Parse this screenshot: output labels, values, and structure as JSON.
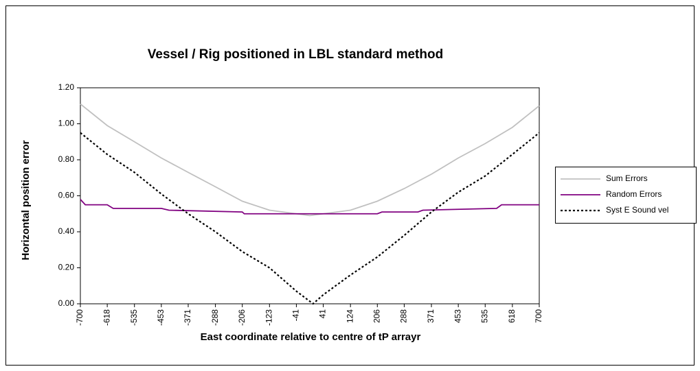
{
  "chart_data": {
    "type": "line",
    "title": "Vessel / Rig positioned in LBL standard method",
    "xlabel": "East coordinate relative to centre of tP arrayr",
    "ylabel": "Horizontal position error",
    "xlim": [
      -700,
      700
    ],
    "xticks": [
      -700,
      -618,
      -535,
      -453,
      -371,
      -288,
      -206,
      -123,
      -41,
      41,
      124,
      206,
      288,
      371,
      453,
      535,
      618,
      700
    ],
    "ylim": [
      0,
      1.2
    ],
    "yticks": [
      {
        "value": 0,
        "label": "0.00"
      },
      {
        "value": 0.2,
        "label": "0.20"
      },
      {
        "value": 0.4,
        "label": "0.40"
      },
      {
        "value": 0.6,
        "label": "0.60"
      },
      {
        "value": 0.8,
        "label": "0.80"
      },
      {
        "value": 1,
        "label": "1.00"
      },
      {
        "value": 1.2,
        "label": "1.20"
      }
    ],
    "grid": false,
    "legend": "right",
    "series": [
      {
        "name": "Sum Errors",
        "color": "#c0c0c0",
        "dash": "solid",
        "x": [
          -700,
          -618,
          -535,
          -453,
          -371,
          -288,
          -206,
          -123,
          -41,
          0,
          41,
          124,
          206,
          288,
          371,
          453,
          535,
          618,
          700
        ],
        "values": [
          1.11,
          0.99,
          0.9,
          0.81,
          0.73,
          0.65,
          0.57,
          0.52,
          0.5,
          0.49,
          0.5,
          0.52,
          0.57,
          0.64,
          0.72,
          0.81,
          0.89,
          0.98,
          1.1
        ]
      },
      {
        "name": "Random Errors",
        "color": "#800080",
        "dash": "solid",
        "x": [
          -700,
          -685,
          -618,
          -600,
          -453,
          -430,
          -206,
          -200,
          206,
          220,
          330,
          345,
          570,
          585,
          700
        ],
        "values": [
          0.58,
          0.55,
          0.55,
          0.53,
          0.53,
          0.52,
          0.51,
          0.5,
          0.5,
          0.51,
          0.51,
          0.52,
          0.53,
          0.55,
          0.55
        ]
      },
      {
        "name": "Syst E Sound vel",
        "color": "#000000",
        "dash": "dotted",
        "x": [
          -700,
          -618,
          -535,
          -453,
          -371,
          -288,
          -206,
          -123,
          -41,
          10,
          41,
          124,
          206,
          288,
          371,
          453,
          535,
          618,
          700
        ],
        "values": [
          0.95,
          0.83,
          0.73,
          0.61,
          0.5,
          0.4,
          0.29,
          0.2,
          0.07,
          0,
          0.05,
          0.16,
          0.26,
          0.38,
          0.51,
          0.62,
          0.71,
          0.83,
          0.95
        ]
      }
    ]
  }
}
